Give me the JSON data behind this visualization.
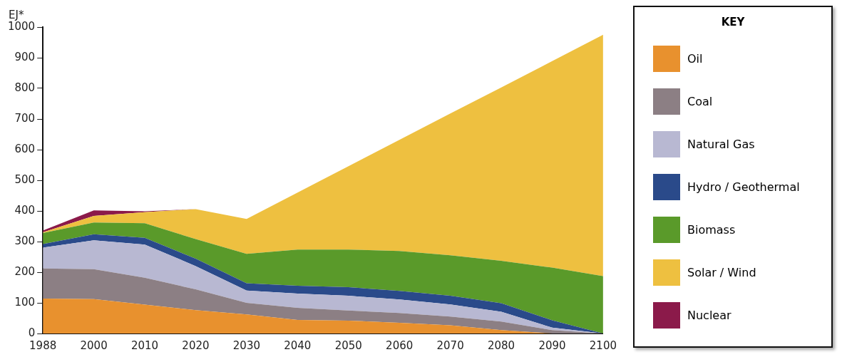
{
  "chart_data": {
    "type": "area",
    "stacked": true,
    "ylabel": "EJ*",
    "legend_title": "KEY",
    "legend": "right",
    "grid": false,
    "marker": "none",
    "categories": [
      "1988",
      "2000",
      "2010",
      "2020",
      "2030",
      "2040",
      "2050",
      "2060",
      "2070",
      "2080",
      "2090",
      "2100"
    ],
    "ylim": [
      0,
      1000
    ],
    "yticks": [
      0,
      100,
      200,
      300,
      400,
      500,
      600,
      700,
      800,
      900,
      1000
    ],
    "series": [
      {
        "name": "Oil",
        "color": "#e8912e",
        "values": [
          114,
          112,
          94,
          76,
          62,
          44,
          42,
          35,
          27,
          11,
          0,
          0
        ]
      },
      {
        "name": "Coal",
        "color": "#8c7f84",
        "values": [
          98,
          98,
          88,
          68,
          38,
          40,
          33,
          32,
          28,
          28,
          11,
          0
        ]
      },
      {
        "name": "Natural Gas",
        "color": "#b8b8d2",
        "values": [
          68,
          94,
          108,
          76,
          40,
          46,
          48,
          44,
          40,
          32,
          8,
          0
        ]
      },
      {
        "name": "Hydro / Geothermal",
        "color": "#2a4a8a",
        "values": [
          12,
          20,
          22,
          24,
          24,
          26,
          28,
          28,
          28,
          28,
          24,
          0
        ]
      },
      {
        "name": "Biomass",
        "color": "#5a9a2a",
        "values": [
          36,
          38,
          48,
          64,
          96,
          118,
          123,
          130,
          132,
          138,
          172,
          187
        ]
      },
      {
        "name": "Solar / Wind",
        "color": "#eec040",
        "values": [
          2,
          22,
          36,
          98,
          114,
          186,
          272,
          363,
          463,
          566,
          674,
          788
        ]
      },
      {
        "name": "Nuclear",
        "color": "#8b1a4a",
        "values": [
          6,
          18,
          3,
          0,
          null,
          null,
          null,
          null,
          null,
          null,
          null,
          null
        ]
      }
    ]
  }
}
